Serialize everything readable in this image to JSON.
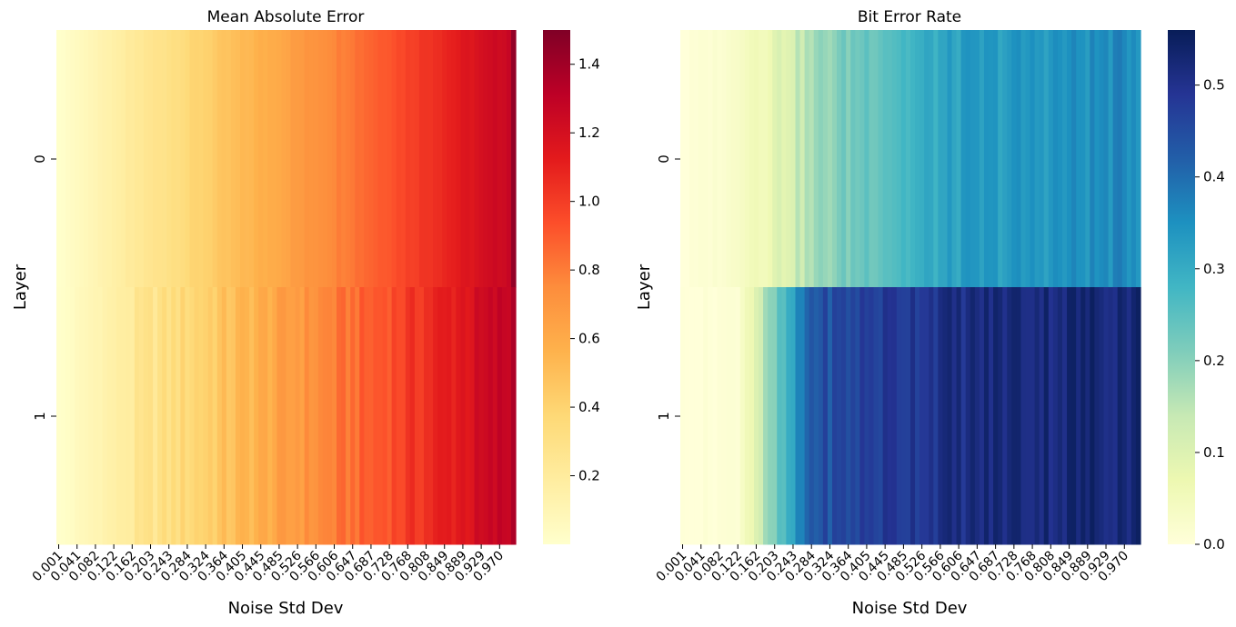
{
  "chart_data": [
    {
      "type": "heatmap",
      "title": "Mean Absolute Error",
      "xlabel": "Noise Std Dev",
      "ylabel": "Layer",
      "y_categories": [
        "0",
        "1"
      ],
      "x_tick_labels": [
        "0.001",
        "0.041",
        "0.082",
        "0.122",
        "0.162",
        "0.203",
        "0.243",
        "0.284",
        "0.324",
        "0.364",
        "0.405",
        "0.445",
        "0.485",
        "0.526",
        "0.566",
        "0.606",
        "0.647",
        "0.687",
        "0.728",
        "0.768",
        "0.808",
        "0.849",
        "0.889",
        "0.929",
        "0.970"
      ],
      "x_range": [
        0.001,
        1.0
      ],
      "n_columns": 100,
      "colormap": "YlOrRd",
      "color_range": [
        0.0,
        1.5
      ],
      "colorbar_ticks": [
        "0.2",
        "0.4",
        "0.6",
        "0.8",
        "1.0",
        "1.2",
        "1.4"
      ],
      "colorbar_tick_values": [
        0.2,
        0.4,
        0.6,
        0.8,
        1.0,
        1.2,
        1.4
      ],
      "rows": [
        {
          "layer": "0",
          "trend": "linear",
          "end_value": 1.28,
          "last_value": 1.45,
          "noise_amplitude": 0.02
        },
        {
          "layer": "1",
          "trend": "linear",
          "end_value": 1.3,
          "last_value": 1.35,
          "noise_amplitude": 0.06
        }
      ]
    },
    {
      "type": "heatmap",
      "title": "Bit Error Rate",
      "xlabel": "Noise Std Dev",
      "ylabel": "Layer",
      "y_categories": [
        "0",
        "1"
      ],
      "x_tick_labels": [
        "0.001",
        "0.041",
        "0.082",
        "0.122",
        "0.162",
        "0.203",
        "0.243",
        "0.284",
        "0.324",
        "0.364",
        "0.405",
        "0.445",
        "0.485",
        "0.526",
        "0.566",
        "0.606",
        "0.647",
        "0.687",
        "0.728",
        "0.768",
        "0.808",
        "0.849",
        "0.889",
        "0.929",
        "0.970"
      ],
      "x_range": [
        0.001,
        1.0
      ],
      "n_columns": 100,
      "colormap": "YlGnBu",
      "color_range": [
        0.0,
        0.56
      ],
      "colorbar_ticks": [
        "0.0",
        "0.1",
        "0.2",
        "0.3",
        "0.4",
        "0.5"
      ],
      "colorbar_tick_values": [
        0.0,
        0.1,
        0.2,
        0.3,
        0.4,
        0.5
      ],
      "rows": [
        {
          "layer": "0",
          "trend": "step",
          "steps": [
            [
              0.0,
              0.0
            ],
            [
              0.1,
              0.02
            ],
            [
              0.16,
              0.06
            ],
            [
              0.22,
              0.1
            ],
            [
              0.3,
              0.18
            ],
            [
              0.4,
              0.24
            ],
            [
              0.5,
              0.28
            ],
            [
              0.6,
              0.32
            ],
            [
              1.0,
              0.36
            ]
          ],
          "noise_amplitude": 0.025
        },
        {
          "layer": "1",
          "trend": "step",
          "steps": [
            [
              0.0,
              0.0
            ],
            [
              0.12,
              0.01
            ],
            [
              0.16,
              0.1
            ],
            [
              0.2,
              0.2
            ],
            [
              0.24,
              0.3
            ],
            [
              0.28,
              0.43
            ],
            [
              0.4,
              0.47
            ],
            [
              0.55,
              0.5
            ],
            [
              0.7,
              0.52
            ],
            [
              1.0,
              0.53
            ]
          ],
          "noise_amplitude": 0.03
        }
      ]
    }
  ]
}
